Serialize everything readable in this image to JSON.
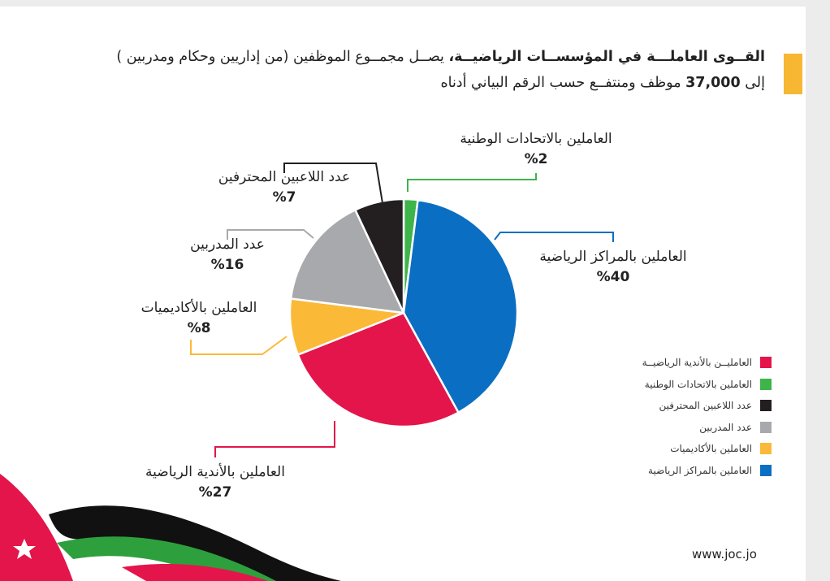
{
  "heading": {
    "line1_bold": "القــوى العاملـــة في المؤسســات الرياضيــة،",
    "line1_rest": " يصــل مجمــوع الموظفين (من إداريين وحكام ومدربين )",
    "line2_pre": "إلى ",
    "line2_num": "37,000",
    "line2_rest": " موظف ومنتفــع حسب الرقم البياني أدناه"
  },
  "footer": {
    "url": "www.joc.jo"
  },
  "chart_data": {
    "type": "pie",
    "start_angle_deg": 0,
    "slices": [
      {
        "label": "العاملين بالاتحادات الوطنية",
        "value": 2,
        "pct_label": "%2",
        "color": "#3db54a"
      },
      {
        "label": "العاملين بالمراكز الرياضية",
        "value": 40,
        "pct_label": "%40",
        "color": "#0a6fc2"
      },
      {
        "label": "العاملين بالأندية الرياضية",
        "value": 27,
        "pct_label": "%27",
        "color": "#e4154b"
      },
      {
        "label": "العاملين بالأكاديميات",
        "value": 8,
        "pct_label": "%8",
        "color": "#fbb938"
      },
      {
        "label": "عدد المدربين",
        "value": 16,
        "pct_label": "%16",
        "color": "#a8a9ac"
      },
      {
        "label": "عدد اللاعبين المحترفين",
        "value": 7,
        "pct_label": "%7",
        "color": "#231f20"
      }
    ],
    "legend": [
      {
        "label": "العامليــن بالأندية الرياضيــة",
        "color": "#e4154b"
      },
      {
        "label": "العاملين بالاتحادات الوطنية",
        "color": "#3db54a"
      },
      {
        "label": "عدد اللاعبين المحترفين",
        "color": "#231f20"
      },
      {
        "label": "عدد المدربين",
        "color": "#a8a9ac"
      },
      {
        "label": "العاملين بالأكاديميات",
        "color": "#fbb938"
      },
      {
        "label": "العاملين بالمراكز الرياضية",
        "color": "#0a6fc2"
      }
    ],
    "legend_position": "bottom-right"
  }
}
